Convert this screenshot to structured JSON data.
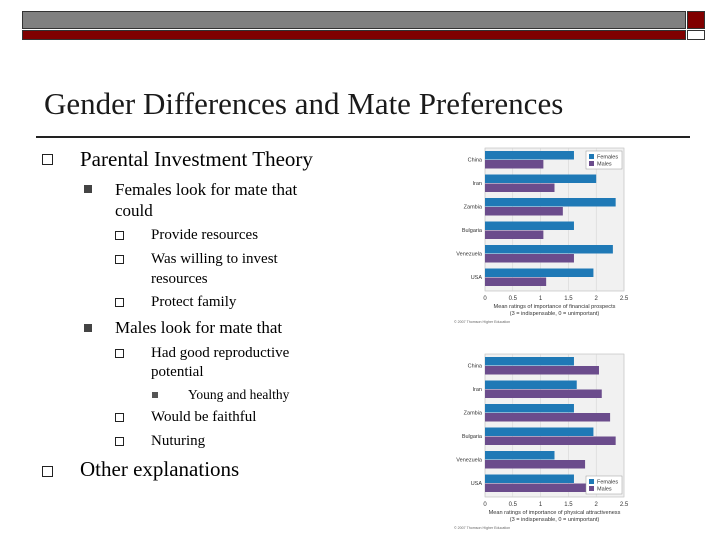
{
  "slide": {
    "title": "Gender Differences and Mate Preferences",
    "bullets": {
      "b1": "Parental Investment Theory",
      "b1_1_line1": "Females look for mate that",
      "b1_1_line2": "could",
      "b1_1_1": "Provide resources",
      "b1_1_2_line1": "Was willing to invest",
      "b1_1_2_line2": "resources",
      "b1_1_3": "Protect family",
      "b1_2": "Males look for mate that",
      "b1_2_1_line1": "Had good reproductive",
      "b1_2_1_line2": "potential",
      "b1_2_1_1": "Young and healthy",
      "b1_2_2": "Would be faithful",
      "b1_2_3": "Nuturing",
      "b2": "Other explanations"
    }
  },
  "colors": {
    "females": "#1f79b6",
    "males": "#6b4c8c",
    "accent_red": "#800000",
    "accent_grey": "#808080"
  },
  "chart_data": [
    {
      "type": "bar",
      "orientation": "horizontal",
      "categories": [
        "China",
        "Iran",
        "Zambia",
        "Bulgaria",
        "Venezuela",
        "USA"
      ],
      "series": [
        {
          "name": "Females",
          "values": [
            1.6,
            2.0,
            2.35,
            1.6,
            2.3,
            1.95
          ]
        },
        {
          "name": "Males",
          "values": [
            1.05,
            1.25,
            1.4,
            1.05,
            1.6,
            1.1
          ]
        }
      ],
      "xlabel_line1": "Mean ratings of importance of financial prospects",
      "xlabel_line2": "(3 = indispensable, 0 = unimportant)",
      "xticks": [
        "0",
        "0.5",
        "1",
        "1.5",
        "2",
        "2.5"
      ],
      "xlim": [
        0,
        2.5
      ],
      "legend": "top-right",
      "credit": "© 2007 Thomson Higher Education"
    },
    {
      "type": "bar",
      "orientation": "horizontal",
      "categories": [
        "China",
        "Iran",
        "Zambia",
        "Bulgaria",
        "Venezuela",
        "USA"
      ],
      "series": [
        {
          "name": "Females",
          "values": [
            1.6,
            1.65,
            1.6,
            1.95,
            1.25,
            1.6
          ]
        },
        {
          "name": "Males",
          "values": [
            2.05,
            2.1,
            2.25,
            2.35,
            1.8,
            2.1
          ]
        }
      ],
      "xlabel_line1": "Mean ratings of importance of physical attractiveness",
      "xlabel_line2": "(3 = indispensable, 0 = unimportant)",
      "xticks": [
        "0",
        "0.5",
        "1",
        "1.5",
        "2",
        "2.5"
      ],
      "xlim": [
        0,
        2.5
      ],
      "legend": "bottom-right",
      "credit": "© 2007 Thomson Higher Education"
    }
  ]
}
